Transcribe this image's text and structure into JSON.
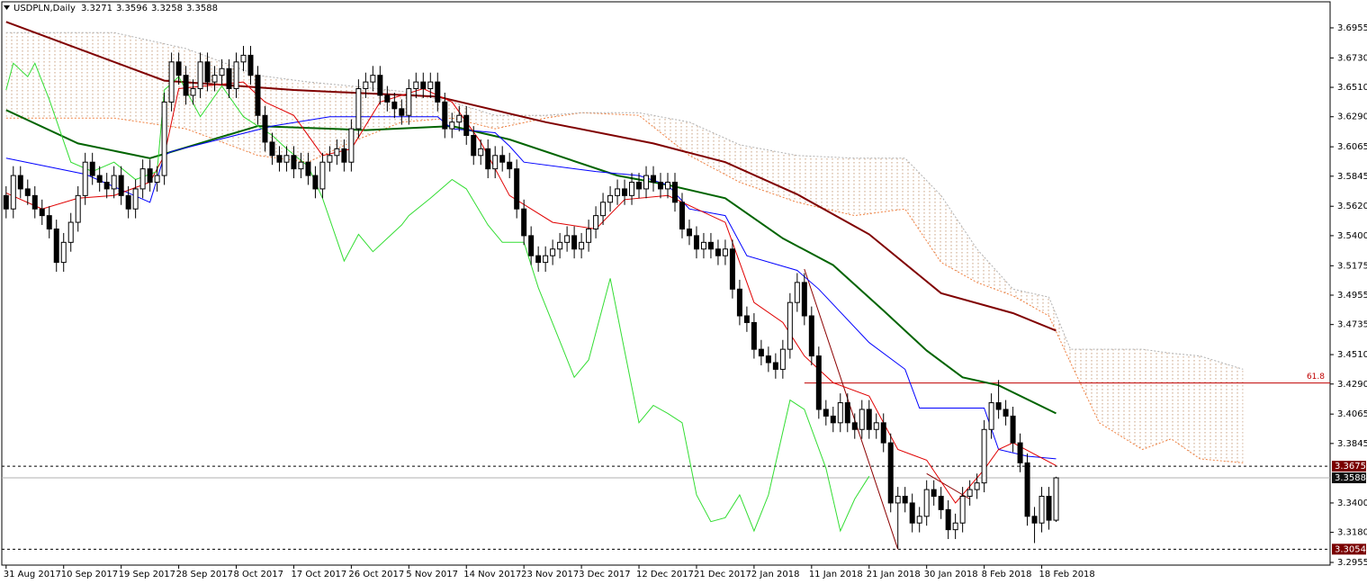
{
  "chart_data": {
    "type": "candlestick",
    "title": "USDPLN,Daily",
    "categories": [
      "31 Aug 2017",
      null,
      null,
      null,
      null,
      null,
      null,
      null,
      "10 Sep 2017",
      null,
      null,
      null,
      null,
      null,
      null,
      null,
      "19 Sep 2017",
      null,
      null,
      null,
      null,
      null,
      null,
      null,
      "28 Sep 2017",
      null,
      null,
      null,
      null,
      null,
      null,
      null,
      "8 Oct 2017",
      null,
      null,
      null,
      null,
      null,
      null,
      null,
      "17 Oct 2017",
      null,
      null,
      null,
      null,
      null,
      null,
      null,
      "26 Oct 2017",
      null,
      null,
      null,
      null,
      null,
      null,
      null,
      "5 Nov 2017",
      null,
      null,
      null,
      null,
      null,
      null,
      null,
      "14 Nov 2017",
      null,
      null,
      null,
      null,
      null,
      null,
      null,
      "23 Nov 2017",
      null,
      null,
      null,
      null,
      null,
      null,
      null,
      "3 Dec 2017",
      null,
      null,
      null,
      null,
      null,
      null,
      null,
      "12 Dec 2017",
      null,
      null,
      null,
      null,
      null,
      null,
      null,
      "21 Dec 2017",
      null,
      null,
      null,
      null,
      null,
      null,
      null,
      "2 Jan 2018",
      null,
      null,
      null,
      null,
      null,
      null,
      null,
      "11 Jan 2018",
      null,
      null,
      null,
      null,
      null,
      null,
      null,
      "21 Jan 2018",
      null,
      null,
      null,
      null,
      null,
      null,
      null,
      "30 Jan 2018",
      null,
      null,
      null,
      null,
      null,
      null,
      null,
      "8 Feb 2018",
      null,
      null,
      null,
      null,
      null,
      null,
      null,
      "18 Feb 2018",
      null,
      null
    ],
    "open": [
      3.57,
      3.56,
      3.585,
      3.575,
      3.57,
      3.56,
      3.555,
      3.545,
      3.52,
      3.535,
      3.55,
      3.57,
      3.595,
      3.585,
      3.58,
      3.575,
      3.585,
      3.57,
      3.56,
      3.575,
      3.59,
      3.58,
      3.585,
      3.64,
      3.67,
      3.66,
      3.645,
      3.65,
      3.67,
      3.655,
      3.66,
      3.665,
      3.65,
      3.67,
      3.675,
      3.66,
      3.63,
      3.61,
      3.6,
      3.595,
      3.6,
      3.59,
      3.595,
      3.585,
      3.575,
      3.595,
      3.6,
      3.605,
      3.595,
      3.62,
      3.65,
      3.655,
      3.66,
      3.645,
      3.64,
      3.635,
      3.63,
      3.65,
      3.655,
      3.65,
      3.655,
      3.64,
      3.62,
      3.625,
      3.63,
      3.615,
      3.6,
      3.605,
      3.59,
      3.6,
      3.595,
      3.59,
      3.56,
      3.54,
      3.525,
      3.52,
      3.525,
      3.53,
      3.535,
      3.54,
      3.53,
      3.535,
      3.545,
      3.555,
      3.565,
      3.57,
      3.575,
      3.57,
      3.58,
      3.575,
      3.585,
      3.58,
      3.575,
      3.58,
      3.565,
      3.545,
      3.54,
      3.53,
      3.535,
      3.53,
      3.525,
      3.53,
      3.5,
      3.48,
      3.475,
      3.455,
      3.45,
      3.445,
      3.44,
      3.455,
      3.49,
      3.505,
      3.48,
      3.45,
      3.41,
      3.405,
      3.4,
      3.415,
      3.4,
      3.395,
      3.41,
      3.395,
      3.4,
      3.385,
      3.34,
      3.345,
      3.34,
      3.325,
      3.33,
      3.35,
      3.345,
      3.335,
      3.32,
      3.325,
      3.345,
      3.35,
      3.355,
      3.395,
      3.415,
      3.41,
      3.405,
      3.385,
      3.37,
      3.33,
      3.325,
      3.345,
      3.3271
    ],
    "high": [
      3.577,
      3.592,
      3.592,
      3.582,
      3.577,
      3.567,
      3.562,
      3.552,
      3.542,
      3.557,
      3.577,
      3.602,
      3.602,
      3.592,
      3.587,
      3.592,
      3.592,
      3.577,
      3.582,
      3.597,
      3.597,
      3.592,
      3.647,
      3.677,
      3.677,
      3.667,
      3.657,
      3.677,
      3.677,
      3.667,
      3.672,
      3.672,
      3.677,
      3.682,
      3.682,
      3.667,
      3.637,
      3.617,
      3.607,
      3.607,
      3.607,
      3.602,
      3.602,
      3.592,
      3.602,
      3.607,
      3.612,
      3.612,
      3.627,
      3.657,
      3.662,
      3.667,
      3.667,
      3.652,
      3.647,
      3.642,
      3.657,
      3.662,
      3.662,
      3.662,
      3.662,
      3.647,
      3.632,
      3.637,
      3.637,
      3.622,
      3.612,
      3.612,
      3.607,
      3.607,
      3.602,
      3.597,
      3.567,
      3.547,
      3.532,
      3.532,
      3.537,
      3.542,
      3.547,
      3.547,
      3.542,
      3.552,
      3.562,
      3.572,
      3.577,
      3.582,
      3.582,
      3.587,
      3.587,
      3.592,
      3.592,
      3.587,
      3.587,
      3.587,
      3.572,
      3.552,
      3.547,
      3.542,
      3.542,
      3.537,
      3.537,
      3.537,
      3.507,
      3.487,
      3.482,
      3.462,
      3.457,
      3.452,
      3.462,
      3.497,
      3.512,
      3.512,
      3.487,
      3.457,
      3.417,
      3.412,
      3.422,
      3.422,
      3.407,
      3.417,
      3.417,
      3.407,
      3.407,
      3.392,
      3.352,
      3.352,
      3.347,
      3.337,
      3.357,
      3.357,
      3.352,
      3.342,
      3.332,
      3.352,
      3.357,
      3.362,
      3.402,
      3.422,
      3.432,
      3.417,
      3.412,
      3.392,
      3.377,
      3.337,
      3.352,
      3.352,
      3.3596
    ],
    "low": [
      3.553,
      3.553,
      3.568,
      3.563,
      3.553,
      3.548,
      3.538,
      3.513,
      3.513,
      3.528,
      3.543,
      3.563,
      3.578,
      3.573,
      3.568,
      3.568,
      3.563,
      3.553,
      3.553,
      3.568,
      3.573,
      3.573,
      3.578,
      3.633,
      3.653,
      3.638,
      3.638,
      3.643,
      3.648,
      3.648,
      3.653,
      3.643,
      3.643,
      3.663,
      3.653,
      3.623,
      3.603,
      3.593,
      3.588,
      3.588,
      3.583,
      3.583,
      3.578,
      3.568,
      3.568,
      3.588,
      3.593,
      3.588,
      3.588,
      3.613,
      3.643,
      3.648,
      3.638,
      3.633,
      3.628,
      3.623,
      3.623,
      3.643,
      3.643,
      3.643,
      3.633,
      3.613,
      3.613,
      3.618,
      3.608,
      3.593,
      3.593,
      3.583,
      3.583,
      3.588,
      3.583,
      3.553,
      3.533,
      3.518,
      3.513,
      3.513,
      3.518,
      3.523,
      3.528,
      3.523,
      3.523,
      3.528,
      3.538,
      3.548,
      3.558,
      3.563,
      3.563,
      3.563,
      3.568,
      3.568,
      3.573,
      3.568,
      3.568,
      3.558,
      3.538,
      3.533,
      3.523,
      3.523,
      3.523,
      3.518,
      3.518,
      3.493,
      3.473,
      3.468,
      3.448,
      3.443,
      3.438,
      3.433,
      3.433,
      3.448,
      3.483,
      3.473,
      3.443,
      3.403,
      3.398,
      3.393,
      3.393,
      3.393,
      3.388,
      3.388,
      3.388,
      3.388,
      3.378,
      3.333,
      3.306,
      3.333,
      3.318,
      3.318,
      3.323,
      3.338,
      3.328,
      3.313,
      3.313,
      3.318,
      3.338,
      3.343,
      3.348,
      3.388,
      3.403,
      3.398,
      3.378,
      3.363,
      3.323,
      3.31,
      3.318,
      3.32,
      3.3258
    ],
    "close": [
      3.56,
      3.585,
      3.575,
      3.57,
      3.56,
      3.555,
      3.545,
      3.52,
      3.535,
      3.55,
      3.57,
      3.595,
      3.585,
      3.58,
      3.575,
      3.585,
      3.57,
      3.56,
      3.575,
      3.59,
      3.58,
      3.585,
      3.64,
      3.67,
      3.66,
      3.645,
      3.65,
      3.67,
      3.655,
      3.66,
      3.665,
      3.65,
      3.67,
      3.675,
      3.66,
      3.63,
      3.61,
      3.6,
      3.595,
      3.6,
      3.59,
      3.595,
      3.585,
      3.575,
      3.595,
      3.6,
      3.605,
      3.595,
      3.62,
      3.65,
      3.655,
      3.66,
      3.645,
      3.64,
      3.635,
      3.63,
      3.65,
      3.655,
      3.65,
      3.655,
      3.64,
      3.62,
      3.625,
      3.63,
      3.615,
      3.6,
      3.605,
      3.59,
      3.6,
      3.595,
      3.59,
      3.56,
      3.54,
      3.525,
      3.52,
      3.525,
      3.53,
      3.535,
      3.54,
      3.53,
      3.535,
      3.545,
      3.555,
      3.565,
      3.57,
      3.575,
      3.57,
      3.58,
      3.575,
      3.585,
      3.58,
      3.575,
      3.58,
      3.565,
      3.545,
      3.54,
      3.53,
      3.535,
      3.53,
      3.525,
      3.53,
      3.5,
      3.48,
      3.475,
      3.455,
      3.45,
      3.445,
      3.44,
      3.455,
      3.49,
      3.505,
      3.48,
      3.45,
      3.41,
      3.405,
      3.4,
      3.415,
      3.4,
      3.395,
      3.41,
      3.395,
      3.4,
      3.385,
      3.34,
      3.345,
      3.34,
      3.325,
      3.33,
      3.35,
      3.345,
      3.335,
      3.32,
      3.325,
      3.345,
      3.35,
      3.355,
      3.395,
      3.415,
      3.41,
      3.405,
      3.385,
      3.37,
      3.33,
      3.325,
      3.345,
      3.3271,
      3.3588
    ],
    "up_color": "#ffffff",
    "down_color": "#000000",
    "xlim": [
      -0.6,
      184.1
    ],
    "ylim": [
      3.2935,
      3.715
    ],
    "yticks": [
      3.6955,
      {
        "value": 3.673,
        "label": "3.6730"
      },
      {
        "value": 3.651,
        "label": "3.6510"
      },
      {
        "value": 3.629,
        "label": "3.6290"
      },
      3.6065,
      3.5845,
      {
        "value": 3.562,
        "label": "3.5620"
      },
      {
        "value": 3.54,
        "label": "3.5400"
      },
      3.5175,
      3.4955,
      3.4735,
      {
        "value": 3.451,
        "label": "3.4510"
      },
      {
        "value": 3.429,
        "label": "3.4290"
      },
      3.4065,
      3.3845,
      {
        "value": 3.34,
        "label": "3.3400"
      },
      {
        "value": 3.318,
        "label": "3.3180"
      },
      3.2955
    ],
    "grid": false,
    "cloud": {
      "x": [
        0,
        15,
        25,
        30,
        35,
        42,
        48,
        55,
        62,
        68,
        75,
        80,
        88,
        95,
        102,
        110,
        118,
        125,
        130,
        135,
        140,
        145,
        148,
        152,
        158,
        162,
        166,
        172
      ],
      "span_a": [
        3.628,
        3.628,
        3.62,
        3.61,
        3.6,
        3.595,
        3.61,
        3.625,
        3.628,
        3.62,
        3.628,
        3.632,
        3.63,
        3.6,
        3.58,
        3.565,
        3.555,
        3.56,
        3.52,
        3.505,
        3.495,
        3.48,
        3.445,
        3.4,
        3.38,
        3.388,
        3.373,
        3.37
      ],
      "span_b": [
        3.692,
        3.692,
        3.68,
        3.67,
        3.66,
        3.655,
        3.652,
        3.648,
        3.64,
        3.63,
        3.63,
        3.632,
        3.632,
        3.625,
        3.608,
        3.6,
        3.598,
        3.598,
        3.57,
        3.53,
        3.5,
        3.494,
        3.455,
        3.455,
        3.455,
        3.452,
        3.45,
        3.44
      ],
      "color_a": "#f08040",
      "color_b": "#b0b0b0"
    },
    "lines": [
      {
        "color": "#800000",
        "width": 2,
        "x": [
          0,
          22,
          40,
          60,
          75,
          90,
          100,
          110,
          120,
          130,
          140,
          146
        ],
        "values": [
          3.7,
          3.656,
          3.649,
          3.644,
          3.625,
          3.609,
          3.595,
          3.571,
          3.541,
          3.497,
          3.482,
          3.469
        ]
      },
      {
        "color": "#006400",
        "width": 2,
        "x": [
          0,
          10,
          20,
          35,
          50,
          62,
          70,
          85,
          92,
          100,
          108,
          115,
          122,
          128,
          133,
          138,
          146
        ],
        "values": [
          3.634,
          3.609,
          3.598,
          3.622,
          3.619,
          3.622,
          3.612,
          3.585,
          3.578,
          3.568,
          3.538,
          3.518,
          3.484,
          3.454,
          3.434,
          3.428,
          3.407
        ]
      },
      {
        "color": "#0000ff",
        "width": 1,
        "x": [
          0,
          11,
          20,
          22,
          23,
          37,
          45,
          60,
          62,
          68,
          70,
          72,
          82,
          88,
          92,
          95,
          100,
          103,
          110,
          113,
          120,
          125,
          127,
          136,
          138,
          142,
          146
        ],
        "values": [
          3.598,
          3.586,
          3.565,
          3.6,
          3.603,
          3.622,
          3.629,
          3.629,
          3.62,
          3.617,
          3.607,
          3.595,
          3.588,
          3.585,
          3.578,
          3.56,
          3.555,
          3.525,
          3.514,
          3.5,
          3.46,
          3.44,
          3.411,
          3.411,
          3.38,
          3.375,
          3.373
        ]
      },
      {
        "color": "#e00000",
        "width": 1,
        "x": [
          0,
          5,
          10,
          15,
          20,
          22,
          24,
          33,
          36,
          40,
          44,
          48,
          52,
          58,
          62,
          66,
          70,
          76,
          82,
          86,
          92,
          96,
          100,
          104,
          108,
          111,
          115,
          120,
          124,
          128,
          132,
          136,
          138,
          140,
          146
        ],
        "values": [
          3.572,
          3.56,
          3.568,
          3.57,
          3.58,
          3.6,
          3.65,
          3.655,
          3.64,
          3.63,
          3.6,
          3.605,
          3.64,
          3.65,
          3.64,
          3.61,
          3.57,
          3.55,
          3.545,
          3.567,
          3.57,
          3.56,
          3.55,
          3.49,
          3.475,
          3.45,
          3.43,
          3.42,
          3.38,
          3.372,
          3.34,
          3.365,
          3.38,
          3.385,
          3.368
        ]
      },
      {
        "color": "#33dd33",
        "width": 1,
        "x": [
          0,
          1,
          3,
          4,
          6,
          9,
          12,
          15,
          18,
          21,
          22,
          24,
          27,
          30,
          33,
          37,
          39,
          42,
          44,
          47,
          49,
          51,
          53,
          55,
          56,
          59,
          62,
          64,
          67,
          69,
          72,
          74,
          77,
          79,
          81,
          84,
          86,
          88,
          90,
          92,
          94,
          96,
          98,
          100,
          102,
          104,
          106,
          109,
          111,
          114,
          116,
          118,
          120
        ],
        "values": [
          3.649,
          3.669,
          3.659,
          3.669,
          3.642,
          3.595,
          3.588,
          3.595,
          3.582,
          3.588,
          3.649,
          3.659,
          3.629,
          3.652,
          3.629,
          3.615,
          3.605,
          3.592,
          3.568,
          3.521,
          3.541,
          3.528,
          3.538,
          3.548,
          3.555,
          3.568,
          3.582,
          3.575,
          3.548,
          3.535,
          3.535,
          3.501,
          3.461,
          3.434,
          3.447,
          3.508,
          3.454,
          3.4,
          3.413,
          3.407,
          3.4,
          3.346,
          3.326,
          3.329,
          3.346,
          3.319,
          3.346,
          3.417,
          3.41,
          3.366,
          3.319,
          3.343,
          3.36
        ]
      }
    ],
    "trendlines": [
      {
        "color": "#8b0000",
        "x": [
          111,
          124
        ],
        "values": [
          3.515,
          3.3054
        ]
      },
      {
        "color": "#8b0000",
        "x": [
          128,
          134
        ],
        "values": [
          3.362,
          3.343
        ]
      }
    ],
    "fib": {
      "ratio": 61.8,
      "value": 3.4298,
      "x_start": 111,
      "color": "#c00000"
    },
    "levels": [
      {
        "value": 3.3675,
        "color": "#7a0000"
      },
      {
        "value": 3.3054,
        "color": "#7a0000"
      }
    ],
    "last_color": "#111111"
  }
}
